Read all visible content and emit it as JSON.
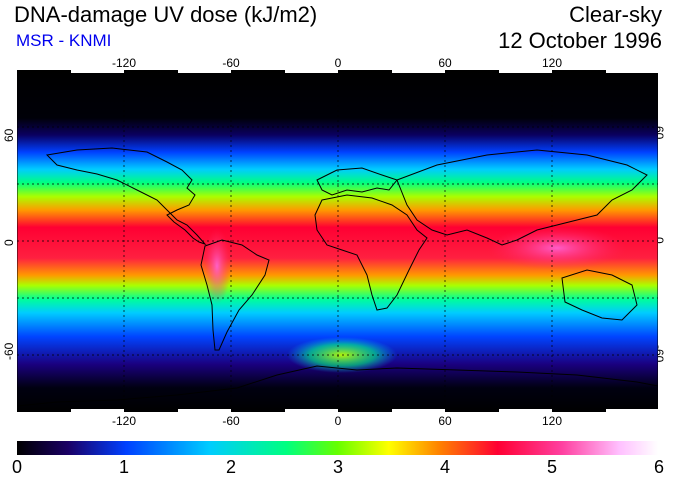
{
  "header": {
    "title": "DNA-damage UV dose (kJ/m2)",
    "source": "MSR - KNMI",
    "condition": "Clear-sky",
    "date": "12 October 1996"
  },
  "colors": {
    "source_text": "#0000ee",
    "colorbar_stops": [
      "#000000",
      "#1a0066",
      "#0040ff",
      "#00ccff",
      "#00ff80",
      "#66ff00",
      "#ffff00",
      "#ff8000",
      "#ff0033",
      "#ff40a0",
      "#ffc0ff",
      "#ffffff"
    ]
  },
  "map": {
    "projection": "equirectangular",
    "lon_range": [
      -180,
      180
    ],
    "lat_range": [
      -90,
      90
    ],
    "lon_ticks": [
      "-120",
      "-60",
      "0",
      "60",
      "120"
    ],
    "lat_ticks": [
      "60",
      "0",
      "-60"
    ],
    "grid": "dashed 30-degree graticule"
  },
  "colorbar": {
    "min": 0,
    "max": 6,
    "labels": [
      "0",
      "1",
      "2",
      "3",
      "4",
      "5",
      "6"
    ]
  }
}
